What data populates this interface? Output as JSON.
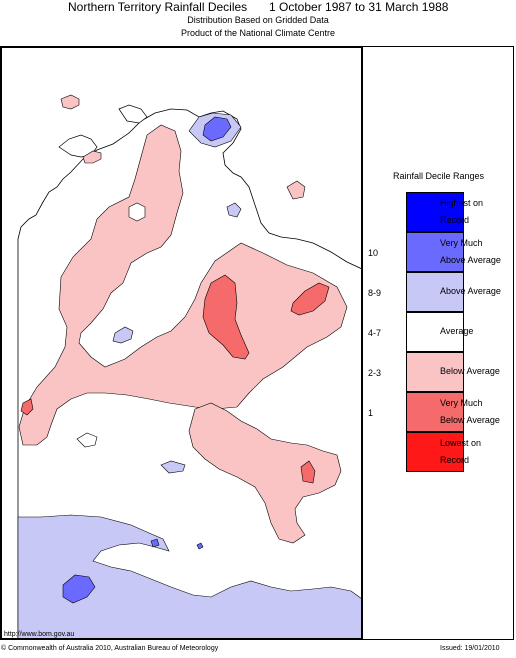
{
  "header": {
    "title": "Northern Territory Rainfall Deciles",
    "period": "1 October 1987 to 31 March 1988",
    "subtitle1": "Distribution Based on Gridded Data",
    "subtitle2": "Product of the National Climate Centre"
  },
  "legend": {
    "title": "Rainfall Decile Ranges",
    "items": [
      {
        "decile": "",
        "line1": "Highest on",
        "line2": "Record",
        "color": "#0000ff"
      },
      {
        "decile": "10",
        "line1": "Very Much",
        "line2": "Above Average",
        "color": "#6a6aff"
      },
      {
        "decile": "8-9",
        "line1": "Above Average",
        "line2": "",
        "color": "#c8c8f7"
      },
      {
        "decile": "4-7",
        "line1": "Average",
        "line2": "",
        "color": "#ffffff"
      },
      {
        "decile": "2-3",
        "line1": "Below Average",
        "line2": "",
        "color": "#fbc4c4"
      },
      {
        "decile": "1",
        "line1": "Very Much",
        "line2": "Below Average",
        "color": "#f56a6a"
      },
      {
        "decile": "",
        "line1": "Lowest on",
        "line2": "Record",
        "color": "#ff1818"
      }
    ]
  },
  "footer": {
    "url": "http://www.bom.gov.au",
    "copyright": "© Commonwealth of Australia 2010, Australian Bureau of Meteorology",
    "issued": "Issued: 19/01/2010"
  }
}
